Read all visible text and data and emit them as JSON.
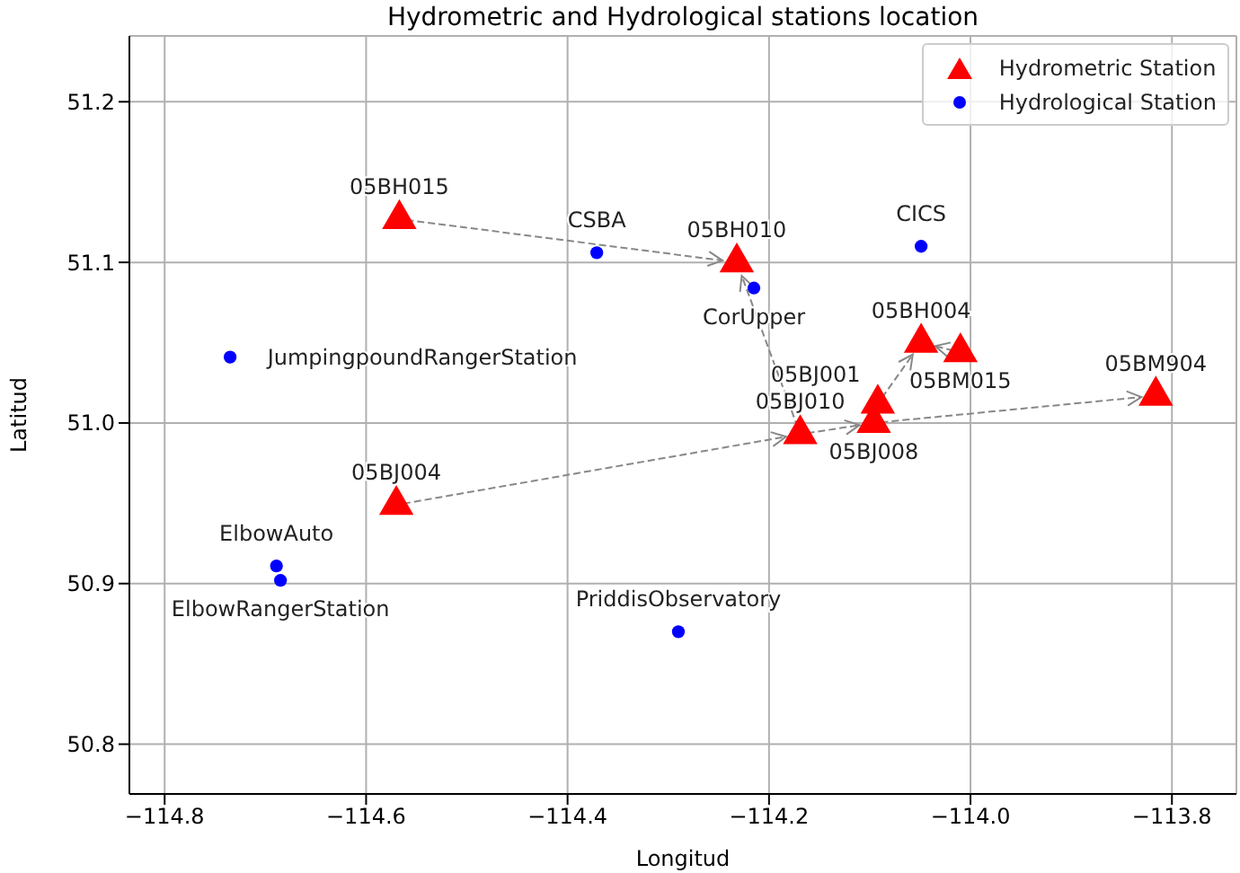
{
  "chart_data": {
    "type": "scatter",
    "title": "Hydrometric and Hydrological stations location",
    "xlabel": "Longitud",
    "ylabel": "Latitud",
    "xlim": [
      -114.835,
      -113.736
    ],
    "xticks": [
      -114.8,
      -114.6,
      -114.4,
      -114.2,
      {
        "value": -114.0,
        "label": "−114.0"
      },
      -113.8
    ],
    "ylim": [
      50.769,
      51.241
    ],
    "yticks": [
      50.8,
      50.9,
      {
        "value": 51.0,
        "label": "51.0"
      },
      51.1,
      51.2
    ],
    "grid": true,
    "legend": "top right",
    "series": [
      {
        "name": "Hydrometric Station",
        "color": "#ff0000",
        "marker": "triangle",
        "x": [
          -114.567,
          -114.232,
          -114.049,
          -114.01,
          -114.092,
          -114.096,
          -114.169,
          -113.816,
          -114.57
        ],
        "values": [
          51.127,
          51.1,
          51.05,
          51.044,
          51.012,
          51.0,
          50.993,
          51.017,
          50.949
        ]
      },
      {
        "name": "Hydrological Station",
        "color": "#0000ff",
        "marker": "circle",
        "x": [
          -114.371,
          -114.215,
          -114.049,
          -114.735,
          -114.689,
          -114.685,
          -114.29
        ],
        "values": [
          51.106,
          51.084,
          51.11,
          51.041,
          50.911,
          50.902,
          50.87
        ]
      }
    ],
    "annotations": [
      {
        "text": "05BH015",
        "x": -114.567,
        "y": 51.127
      },
      {
        "text": "05BH010",
        "x": -114.232,
        "y": 51.1
      },
      {
        "text": "05BH004",
        "x": -114.049,
        "y": 51.05
      },
      {
        "text": "05BM015",
        "x": -114.01,
        "y": 51.044
      },
      {
        "text": "05BJ001",
        "x": -114.092,
        "y": 51.012
      },
      {
        "text": "05BJ008",
        "x": -114.096,
        "y": 51.0
      },
      {
        "text": "05BJ010",
        "x": -114.169,
        "y": 50.993
      },
      {
        "text": "05BM904",
        "x": -113.816,
        "y": 51.017
      },
      {
        "text": "05BJ004",
        "x": -114.57,
        "y": 50.949
      },
      {
        "text": "CSBA",
        "x": -114.371,
        "y": 51.106
      },
      {
        "text": "CorUpper",
        "x": -114.215,
        "y": 51.084
      },
      {
        "text": "CICS",
        "x": -114.049,
        "y": 51.11
      },
      {
        "text": "JumpingpoundRangerStation",
        "x": -114.735,
        "y": 51.041
      },
      {
        "text": "ElbowAuto",
        "x": -114.689,
        "y": 50.911
      },
      {
        "text": "ElbowRangerStation",
        "x": -114.685,
        "y": 50.902
      },
      {
        "text": "PriddisObservatory",
        "x": -114.29,
        "y": 50.87
      }
    ]
  }
}
